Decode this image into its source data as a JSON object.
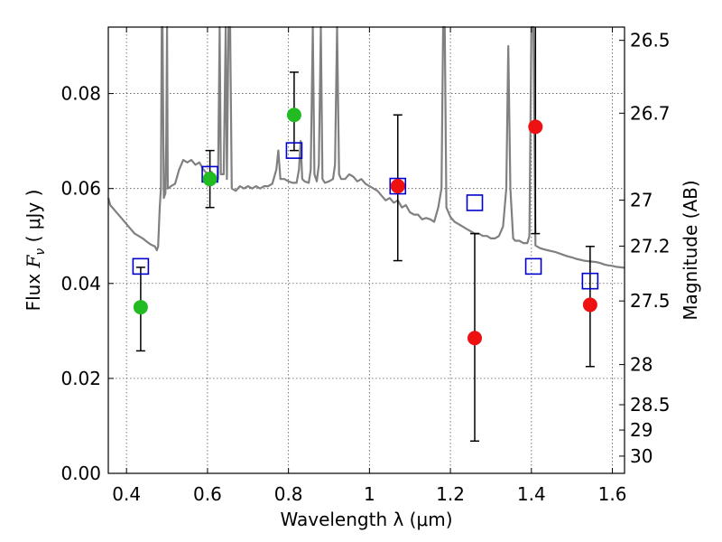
{
  "chart_data": {
    "type": "scatter",
    "xlabel": "Wavelength  λ (μm)",
    "ylabel_prefix": "Flux  ",
    "ylabel_symbol": "F",
    "ylabel_subscript": "ν",
    "ylabel_unit": "  ( μJy )",
    "y2label": "Magnitude (AB)",
    "xlim": [
      0.355,
      1.63
    ],
    "ylim": [
      0.0,
      0.094
    ],
    "grid": true,
    "x_ticks": [
      {
        "value": 0.4,
        "label": "0.4"
      },
      {
        "value": 0.6,
        "label": "0.6"
      },
      {
        "value": 0.8,
        "label": "0.8"
      },
      {
        "value": 1.0,
        "label": "1"
      },
      {
        "value": 1.2,
        "label": "1.2"
      },
      {
        "value": 1.4,
        "label": "1.4"
      },
      {
        "value": 1.6,
        "label": "1.6"
      }
    ],
    "y_ticks": [
      {
        "value": 0.0,
        "label": "0.00"
      },
      {
        "value": 0.02,
        "label": "0.02"
      },
      {
        "value": 0.04,
        "label": "0.04"
      },
      {
        "value": 0.06,
        "label": "0.06"
      },
      {
        "value": 0.08,
        "label": "0.08"
      }
    ],
    "y2_ticks": [
      {
        "value": 26.5,
        "label": "26.5"
      },
      {
        "value": 26.7,
        "label": "26.7"
      },
      {
        "value": 27.0,
        "label": "27"
      },
      {
        "value": 27.2,
        "label": "27.2"
      },
      {
        "value": 27.5,
        "label": "27.5"
      },
      {
        "value": 28.0,
        "label": "28"
      },
      {
        "value": 28.5,
        "label": "28.5"
      },
      {
        "value": 29.0,
        "label": "29"
      },
      {
        "value": 30.0,
        "label": "30"
      }
    ],
    "series": [
      {
        "name": "model_spectrum",
        "kind": "line",
        "color": "#808080",
        "points": [
          [
            0.355,
            0.058
          ],
          [
            0.36,
            0.0565
          ],
          [
            0.37,
            0.0555
          ],
          [
            0.38,
            0.0545
          ],
          [
            0.39,
            0.0535
          ],
          [
            0.4,
            0.0525
          ],
          [
            0.41,
            0.0515
          ],
          [
            0.42,
            0.0505
          ],
          [
            0.43,
            0.05
          ],
          [
            0.44,
            0.0495
          ],
          [
            0.45,
            0.0488
          ],
          [
            0.46,
            0.0482
          ],
          [
            0.47,
            0.0478
          ],
          [
            0.475,
            0.047
          ],
          [
            0.478,
            0.0478
          ],
          [
            0.482,
            0.056
          ],
          [
            0.485,
            0.06
          ],
          [
            0.487,
            0.094
          ],
          [
            0.489,
            0.094
          ],
          [
            0.492,
            0.058
          ],
          [
            0.496,
            0.059
          ],
          [
            0.498,
            0.07
          ],
          [
            0.5,
            0.094
          ],
          [
            0.502,
            0.06
          ],
          [
            0.51,
            0.0605
          ],
          [
            0.52,
            0.061
          ],
          [
            0.53,
            0.064
          ],
          [
            0.535,
            0.065
          ],
          [
            0.54,
            0.066
          ],
          [
            0.55,
            0.0655
          ],
          [
            0.56,
            0.066
          ],
          [
            0.57,
            0.065
          ],
          [
            0.58,
            0.0655
          ],
          [
            0.59,
            0.064
          ],
          [
            0.6,
            0.063
          ],
          [
            0.61,
            0.0635
          ],
          [
            0.62,
            0.062
          ],
          [
            0.626,
            0.062
          ],
          [
            0.63,
            0.094
          ],
          [
            0.633,
            0.063
          ],
          [
            0.64,
            0.063
          ],
          [
            0.645,
            0.094
          ],
          [
            0.648,
            0.062
          ],
          [
            0.652,
            0.094
          ],
          [
            0.656,
            0.094
          ],
          [
            0.66,
            0.06
          ],
          [
            0.67,
            0.0595
          ],
          [
            0.68,
            0.0605
          ],
          [
            0.69,
            0.06
          ],
          [
            0.7,
            0.0605
          ],
          [
            0.71,
            0.06
          ],
          [
            0.72,
            0.0605
          ],
          [
            0.73,
            0.06
          ],
          [
            0.74,
            0.0605
          ],
          [
            0.75,
            0.0605
          ],
          [
            0.76,
            0.061
          ],
          [
            0.77,
            0.064
          ],
          [
            0.775,
            0.068
          ],
          [
            0.78,
            0.062
          ],
          [
            0.79,
            0.062
          ],
          [
            0.8,
            0.0615
          ],
          [
            0.81,
            0.0612
          ],
          [
            0.82,
            0.0612
          ],
          [
            0.826,
            0.064
          ],
          [
            0.83,
            0.07
          ],
          [
            0.834,
            0.062
          ],
          [
            0.84,
            0.0615
          ],
          [
            0.85,
            0.0612
          ],
          [
            0.855,
            0.064
          ],
          [
            0.86,
            0.094
          ],
          [
            0.864,
            0.063
          ],
          [
            0.87,
            0.0615
          ],
          [
            0.875,
            0.065
          ],
          [
            0.88,
            0.094
          ],
          [
            0.884,
            0.062
          ],
          [
            0.89,
            0.0612
          ],
          [
            0.9,
            0.0615
          ],
          [
            0.91,
            0.062
          ],
          [
            0.915,
            0.065
          ],
          [
            0.92,
            0.094
          ],
          [
            0.925,
            0.063
          ],
          [
            0.93,
            0.062
          ],
          [
            0.94,
            0.062
          ],
          [
            0.95,
            0.063
          ],
          [
            0.96,
            0.0625
          ],
          [
            0.97,
            0.0615
          ],
          [
            0.98,
            0.062
          ],
          [
            0.99,
            0.061
          ],
          [
            1.0,
            0.0605
          ],
          [
            1.01,
            0.06
          ],
          [
            1.02,
            0.0595
          ],
          [
            1.03,
            0.0585
          ],
          [
            1.04,
            0.0575
          ],
          [
            1.05,
            0.058
          ],
          [
            1.06,
            0.057
          ],
          [
            1.07,
            0.0575
          ],
          [
            1.08,
            0.056
          ],
          [
            1.09,
            0.0565
          ],
          [
            1.1,
            0.055
          ],
          [
            1.11,
            0.0545
          ],
          [
            1.12,
            0.0545
          ],
          [
            1.13,
            0.0535
          ],
          [
            1.14,
            0.0538
          ],
          [
            1.15,
            0.0535
          ],
          [
            1.16,
            0.053
          ],
          [
            1.17,
            0.056
          ],
          [
            1.178,
            0.06
          ],
          [
            1.182,
            0.094
          ],
          [
            1.186,
            0.094
          ],
          [
            1.19,
            0.056
          ],
          [
            1.2,
            0.054
          ],
          [
            1.21,
            0.053
          ],
          [
            1.22,
            0.0525
          ],
          [
            1.23,
            0.052
          ],
          [
            1.24,
            0.0515
          ],
          [
            1.25,
            0.051
          ],
          [
            1.26,
            0.0505
          ],
          [
            1.27,
            0.0505
          ],
          [
            1.28,
            0.05
          ],
          [
            1.29,
            0.05
          ],
          [
            1.3,
            0.0495
          ],
          [
            1.31,
            0.0495
          ],
          [
            1.32,
            0.05
          ],
          [
            1.33,
            0.052
          ],
          [
            1.338,
            0.06
          ],
          [
            1.343,
            0.09
          ],
          [
            1.348,
            0.06
          ],
          [
            1.355,
            0.0495
          ],
          [
            1.36,
            0.049
          ],
          [
            1.37,
            0.049
          ],
          [
            1.38,
            0.0485
          ],
          [
            1.39,
            0.0485
          ],
          [
            1.395,
            0.05
          ],
          [
            1.4,
            0.094
          ],
          [
            1.405,
            0.094
          ],
          [
            1.41,
            0.048
          ],
          [
            1.42,
            0.0475
          ],
          [
            1.43,
            0.0472
          ],
          [
            1.44,
            0.047
          ],
          [
            1.45,
            0.0468
          ],
          [
            1.46,
            0.0466
          ],
          [
            1.47,
            0.0463
          ],
          [
            1.48,
            0.046
          ],
          [
            1.49,
            0.0457
          ],
          [
            1.5,
            0.0455
          ],
          [
            1.51,
            0.0452
          ],
          [
            1.52,
            0.045
          ],
          [
            1.53,
            0.0448
          ],
          [
            1.54,
            0.0447
          ],
          [
            1.55,
            0.0446
          ],
          [
            1.56,
            0.0445
          ],
          [
            1.57,
            0.0443
          ],
          [
            1.58,
            0.044
          ],
          [
            1.59,
            0.0438
          ],
          [
            1.6,
            0.0437
          ],
          [
            1.61,
            0.0435
          ],
          [
            1.62,
            0.0434
          ],
          [
            1.63,
            0.0433
          ]
        ]
      },
      {
        "name": "model_photometry",
        "kind": "open_square",
        "color": "#0000cc",
        "points": [
          [
            0.435,
            0.0436
          ],
          [
            0.606,
            0.063
          ],
          [
            0.814,
            0.068
          ],
          [
            1.07,
            0.0605
          ],
          [
            1.26,
            0.057
          ],
          [
            1.405,
            0.0436
          ],
          [
            1.545,
            0.0405
          ]
        ]
      },
      {
        "name": "observed_optical",
        "kind": "filled_circle",
        "color": "#22bb22",
        "points": [
          {
            "x": 0.435,
            "y": 0.035,
            "err_low": 0.0258,
            "err_high": 0.0434
          },
          {
            "x": 0.606,
            "y": 0.062,
            "err_low": 0.056,
            "err_high": 0.068
          },
          {
            "x": 0.814,
            "y": 0.0755,
            "err_low": 0.068,
            "err_high": 0.0845
          }
        ]
      },
      {
        "name": "observed_nir",
        "kind": "filled_circle",
        "color": "#ee1111",
        "points": [
          {
            "x": 1.07,
            "y": 0.0605,
            "err_low": 0.0448,
            "err_high": 0.0755
          },
          {
            "x": 1.26,
            "y": 0.0285,
            "err_low": 0.0068,
            "err_high": 0.0505
          },
          {
            "x": 1.41,
            "y": 0.073,
            "err_low": 0.0505,
            "err_high": 0.094
          },
          {
            "x": 1.545,
            "y": 0.0355,
            "err_low": 0.0225,
            "err_high": 0.0478
          }
        ]
      }
    ]
  }
}
